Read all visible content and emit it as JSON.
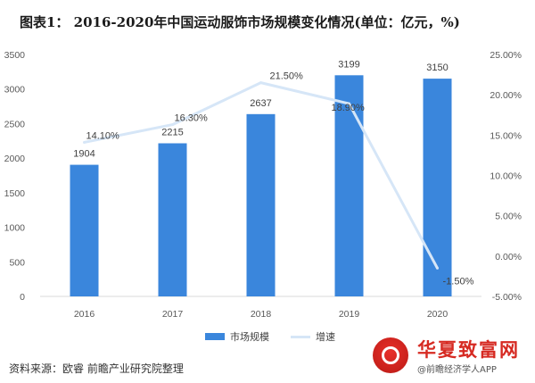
{
  "title": "图表1： 2016-2020年中国运动服饰市场规模变化情况(单位：亿元，%)",
  "legend": {
    "bar_label": "市场规模",
    "line_label": "增速"
  },
  "source": "资料来源：欧睿 前瞻产业研究院整理",
  "badge": {
    "name": "华夏致富网",
    "subtitle": "@前瞻经济学人APP"
  },
  "colors": {
    "bar": "#3A86DC",
    "line": "#D6E6F7",
    "badge": "#D62A22"
  },
  "chart_data": {
    "type": "bar",
    "categories": [
      "2016",
      "2017",
      "2018",
      "2019",
      "2020"
    ],
    "series": [
      {
        "name": "市场规模",
        "type": "bar",
        "axis": "left",
        "values": [
          1904,
          2215,
          2637,
          3199,
          3150
        ]
      },
      {
        "name": "增速",
        "type": "line",
        "axis": "right",
        "values": [
          14.1,
          16.3,
          21.5,
          18.9,
          -1.5
        ],
        "labels": [
          "14.10%",
          "16.30%",
          "21.50%",
          "18.90%",
          "-1.50%"
        ]
      }
    ],
    "ylim": [
      0,
      3500
    ],
    "yticks": [
      0,
      500,
      1000,
      1500,
      2000,
      2500,
      3000,
      3500
    ],
    "y2lim": [
      -5,
      25
    ],
    "y2ticks": [
      "-5.00%",
      "0.00%",
      "5.00%",
      "10.00%",
      "15.00%",
      "20.00%",
      "25.00%"
    ],
    "y2values": [
      -5,
      0,
      5,
      10,
      15,
      20,
      25
    ],
    "grid": false,
    "legend_position": "bottom"
  }
}
